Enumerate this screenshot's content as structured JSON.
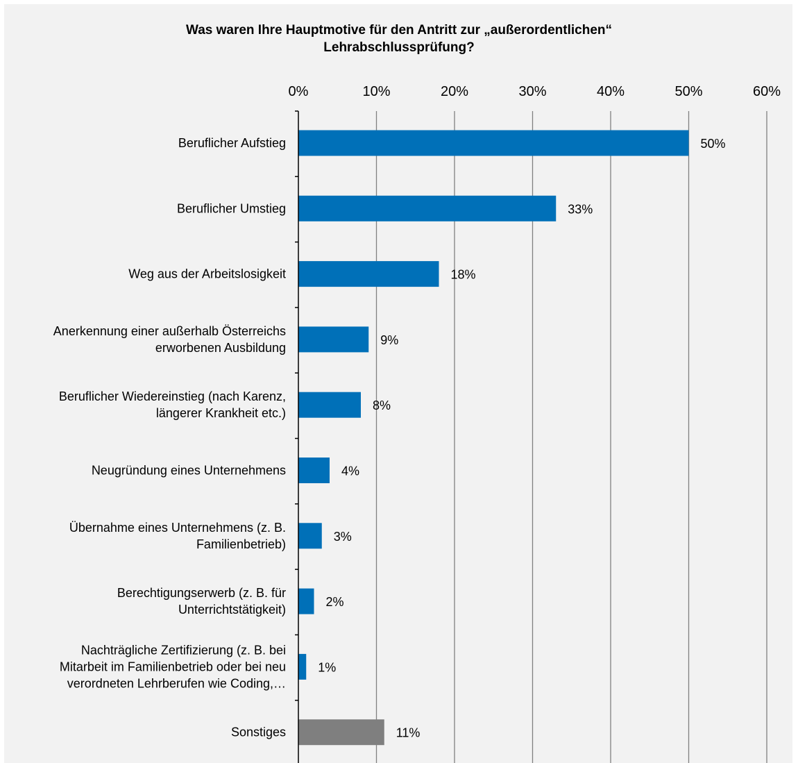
{
  "chart_data": {
    "type": "bar",
    "orientation": "horizontal",
    "title_lines": [
      "Was waren Ihre Hauptmotive für den Antritt zur „außerordentlichen“",
      "Lehrabschlussprüfung?"
    ],
    "categories": [
      [
        "Beruflicher Aufstieg"
      ],
      [
        "Beruflicher Umstieg"
      ],
      [
        "Weg aus der Arbeitslosigkeit"
      ],
      [
        "Anerkennung einer außerhalb Österreichs",
        "erworbenen Ausbildung"
      ],
      [
        "Beruflicher Wiedereinstieg (nach Karenz,",
        "längerer Krankheit etc.)"
      ],
      [
        "Neugründung eines Unternehmens"
      ],
      [
        "Übernahme eines Unternehmens (z. B.",
        "Familienbetrieb)"
      ],
      [
        "Berechtigungserwerb (z. B. für",
        "Unterrichtstätigkeit)"
      ],
      [
        "Nachträgliche Zertifizierung (z. B. bei",
        "Mitarbeit im Familienbetrieb oder bei neu",
        "verordneten Lehrberufen wie Coding,…"
      ],
      [
        "Sonstiges"
      ]
    ],
    "values": [
      50,
      33,
      18,
      9,
      8,
      4,
      3,
      2,
      1,
      11
    ],
    "data_labels": [
      "50%",
      "33%",
      "18%",
      "9%",
      "8%",
      "4%",
      "3%",
      "2%",
      "1%",
      "11%"
    ],
    "bar_colors": [
      "#0070b8",
      "#0070b8",
      "#0070b8",
      "#0070b8",
      "#0070b8",
      "#0070b8",
      "#0070b8",
      "#0070b8",
      "#0070b8",
      "#7f7f7f"
    ],
    "xlim": [
      0,
      60
    ],
    "x_ticks": [
      0,
      10,
      20,
      30,
      40,
      50,
      60
    ],
    "x_tick_labels": [
      "0%",
      "10%",
      "20%",
      "30%",
      "40%",
      "50%",
      "60%"
    ],
    "x_axis_position": "top",
    "grid": true,
    "legend": "none"
  },
  "colors": {
    "background": "#f2f2f2",
    "gridline": "#808080",
    "axis": "#000000"
  }
}
